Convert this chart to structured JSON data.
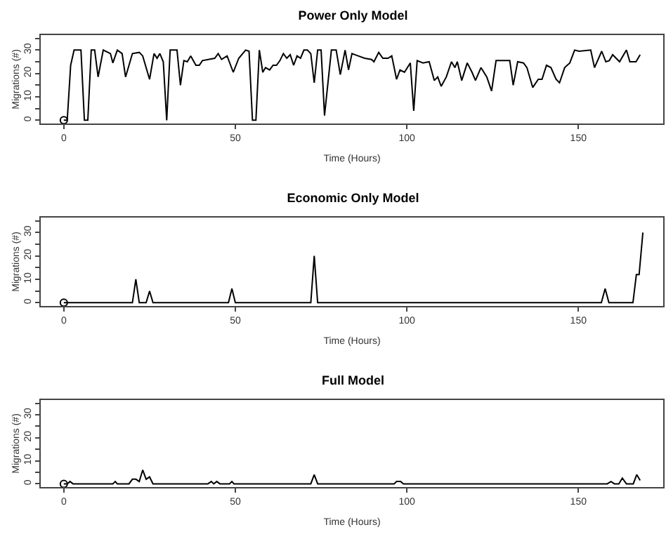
{
  "chart_data": [
    {
      "type": "line",
      "title": "Power Only Model",
      "xlabel": "Time (Hours)",
      "ylabel": "Migrations (#)",
      "xlim": [
        -6.72,
        174.72
      ],
      "ylim": [
        -1.4,
        36.4
      ],
      "xticks": [
        0,
        50,
        100,
        150
      ],
      "yticks": [
        0,
        {
          "value": 5,
          "label": null
        },
        10,
        {
          "value": 15,
          "label": null
        },
        20,
        {
          "value": 25,
          "label": null
        },
        30,
        {
          "value": 35,
          "label": null
        }
      ],
      "series": [
        {
          "color": "#000000",
          "x": [
            0,
            1,
            2,
            3,
            5,
            6,
            7,
            8,
            9,
            10,
            11.5,
            13.6,
            14.3,
            15.6,
            17,
            18,
            20,
            22,
            23,
            25,
            26.3,
            27.2,
            28,
            29,
            30,
            31,
            33,
            34,
            35,
            36,
            37,
            38.5,
            39.5,
            40.4,
            44,
            45,
            46,
            47.6,
            49.4,
            51,
            53,
            54,
            55,
            56,
            57,
            58,
            58.8,
            60,
            61,
            62,
            63,
            64,
            65,
            66,
            67,
            68,
            69,
            70,
            71,
            72,
            73,
            74,
            75,
            76,
            78,
            79.4,
            80.6,
            82,
            83,
            84,
            85.8,
            87.7,
            89.7,
            90.4,
            91.8,
            93,
            94.5,
            95.6,
            97,
            98,
            99.3,
            101,
            102,
            103,
            104.7,
            106.5,
            108,
            109,
            110,
            111.5,
            113,
            114,
            114.7,
            116,
            117.6,
            119,
            120,
            121.6,
            123.3,
            124.7,
            126,
            130,
            131,
            132.3,
            134,
            135,
            136.7,
            138.3,
            139.4,
            140.7,
            142,
            143.5,
            144.5,
            146,
            147.5,
            148.9,
            150.2,
            153.6,
            154.7,
            156.8,
            158,
            159,
            160,
            161,
            162,
            164,
            165,
            166.8,
            168
          ],
          "values": [
            0,
            0,
            23.5,
            30,
            30,
            0,
            0,
            30,
            30,
            18.5,
            30,
            28.5,
            24.5,
            30,
            28.5,
            18.5,
            28.5,
            29,
            27.5,
            17.5,
            28.5,
            26.5,
            28.5,
            25,
            0,
            30,
            30,
            15,
            25.5,
            25,
            27.5,
            23.5,
            23.5,
            25.5,
            26.5,
            28.5,
            26,
            27.5,
            20.5,
            26.5,
            30,
            29.5,
            0,
            0,
            30,
            20.5,
            22.5,
            21.5,
            23.5,
            23.5,
            25.5,
            28.5,
            26.5,
            28,
            23.5,
            27.5,
            26.5,
            30,
            30,
            28.5,
            16,
            30,
            30,
            2,
            30,
            30,
            19.5,
            30,
            21.5,
            28.5,
            27.5,
            26.5,
            26,
            25,
            29,
            26.5,
            26.5,
            27.5,
            17.5,
            21.5,
            20.5,
            24.5,
            4,
            25.5,
            24.5,
            25,
            17,
            18.5,
            14.5,
            18.5,
            25,
            22.5,
            25,
            17,
            24.5,
            20.5,
            17,
            22.5,
            18.5,
            12.5,
            25.5,
            25.5,
            15,
            25,
            24.5,
            22.5,
            14,
            17.5,
            17.5,
            23.5,
            22.5,
            17.5,
            16,
            22.5,
            24.5,
            30,
            29.5,
            30,
            22.5,
            29.5,
            25,
            25.5,
            28,
            26.5,
            25,
            30,
            25,
            25,
            28
          ]
        },
        {
          "type": "scatter",
          "marker": "circle",
          "color": "#000000",
          "x": [
            0
          ],
          "values": [
            0
          ]
        }
      ]
    },
    {
      "type": "line",
      "title": "Economic Only Model",
      "xlabel": "Time (Hours)",
      "ylabel": "Migrations (#)",
      "xlim": [
        -6.72,
        174.72
      ],
      "ylim": [
        -1.4,
        36.4
      ],
      "xticks": [
        0,
        50,
        100,
        150
      ],
      "yticks": [
        0,
        {
          "value": 5,
          "label": null
        },
        10,
        {
          "value": 15,
          "label": null
        },
        20,
        {
          "value": 25,
          "label": null
        },
        30,
        {
          "value": 35,
          "label": null
        }
      ],
      "series": [
        {
          "color": "#000000",
          "x": [
            0,
            20,
            21,
            22,
            24,
            25,
            26,
            48,
            49,
            50,
            72,
            73,
            74,
            156.7,
            157.8,
            158.9,
            165.9,
            166.9,
            167.7,
            168.8
          ],
          "values": [
            0,
            0,
            10,
            0,
            0,
            5,
            0,
            0,
            6,
            0,
            0,
            20,
            0,
            0,
            6,
            0,
            0,
            12,
            12,
            30
          ]
        },
        {
          "type": "scatter",
          "marker": "circle",
          "color": "#000000",
          "x": [
            0
          ],
          "values": [
            0
          ]
        }
      ]
    },
    {
      "type": "line",
      "title": "Full Model",
      "xlabel": "Time (Hours)",
      "ylabel": "Migrations (#)",
      "xlim": [
        -6.72,
        174.72
      ],
      "ylim": [
        -1.4,
        36.4
      ],
      "xticks": [
        0,
        50,
        100,
        150
      ],
      "yticks": [
        0,
        {
          "value": 5,
          "label": null
        },
        10,
        {
          "value": 15,
          "label": null
        },
        20,
        {
          "value": 25,
          "label": null
        },
        30,
        {
          "value": 35,
          "label": null
        }
      ],
      "series": [
        {
          "color": "#000000",
          "x": [
            0,
            1,
            1.8,
            2.7,
            14.3,
            15,
            15.6,
            19,
            20,
            21,
            22,
            23,
            24,
            25,
            26,
            42,
            43,
            43.7,
            44.6,
            45.5,
            48.3,
            49,
            49.6,
            72,
            73,
            74,
            96.3,
            97,
            98.2,
            99,
            158.4,
            159.5,
            160.5,
            161.8,
            162.8,
            164,
            166,
            167,
            168
          ],
          "values": [
            0,
            0,
            1,
            0,
            0,
            1,
            0,
            0,
            2,
            2,
            1,
            6,
            2,
            3,
            0,
            0,
            1,
            0,
            1,
            0,
            0,
            1,
            0,
            0,
            4,
            0,
            0,
            1,
            1,
            0,
            0,
            1,
            0,
            0,
            2.5,
            0,
            0,
            4,
            1.5
          ]
        },
        {
          "type": "scatter",
          "marker": "circle",
          "color": "#000000",
          "x": [
            0
          ],
          "values": [
            0
          ]
        }
      ]
    }
  ]
}
